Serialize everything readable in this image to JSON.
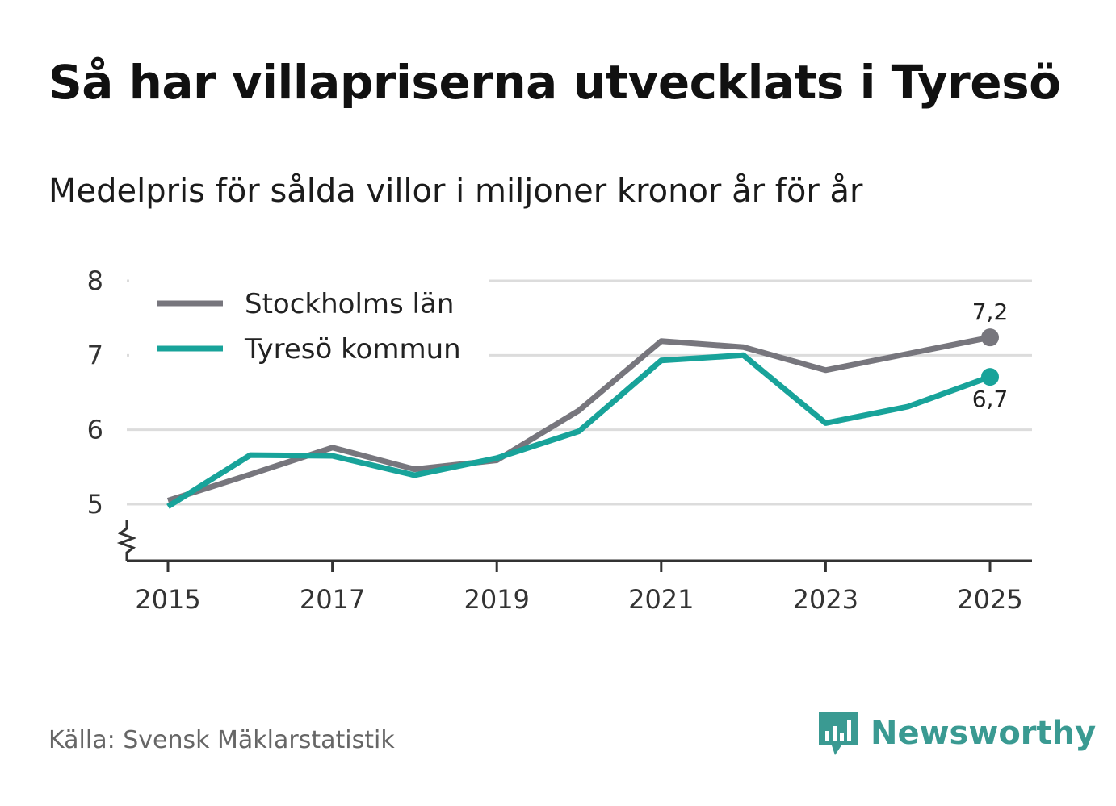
{
  "header": {
    "title": "Så har villapriserna utvecklats i Tyresö",
    "subtitle": "Medelpris för sålda villor i miljoner kronor år för år"
  },
  "footer": {
    "source": "Källa: Svensk Mäklarstatistik",
    "brand": "Newsworthy",
    "brand_icon": "bar-chart-speech-bubble-icon",
    "brand_color": "#3a9a92"
  },
  "chart_data": {
    "type": "line",
    "title": "Så har villapriserna utvecklats i Tyresö",
    "subtitle": "Medelpris för sålda villor i miljoner kronor år för år",
    "xlabel": "",
    "ylabel": "",
    "x": [
      2015,
      2016,
      2017,
      2018,
      2019,
      2020,
      2021,
      2022,
      2023,
      2024,
      2025
    ],
    "xlim": [
      2015,
      2025
    ],
    "ylim": [
      4.25,
      8
    ],
    "y_axis_break": true,
    "grid": true,
    "legend_position": "top-left",
    "x_ticks": [
      "2015",
      "2017",
      "2019",
      "2021",
      "2023",
      "2025"
    ],
    "y_ticks": [
      "5",
      "6",
      "7",
      "8"
    ],
    "series": [
      {
        "name": "Stockholms län",
        "color": "#77767d",
        "values": [
          5.05,
          5.4,
          5.76,
          5.47,
          5.59,
          6.26,
          7.19,
          7.11,
          6.8,
          7.02,
          7.24
        ],
        "end_label": "7,2"
      },
      {
        "name": "Tyresö kommun",
        "color": "#18a39a",
        "values": [
          4.97,
          5.66,
          5.65,
          5.39,
          5.62,
          5.98,
          6.93,
          7.0,
          6.09,
          6.31,
          6.71
        ],
        "end_label": "6,7"
      }
    ]
  }
}
